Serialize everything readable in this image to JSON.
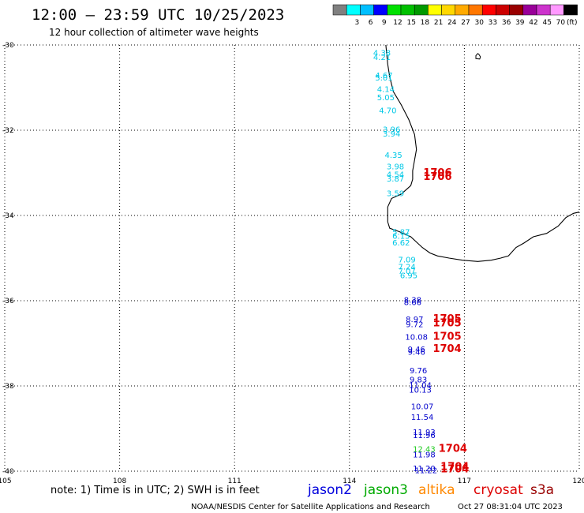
{
  "header": {
    "title": "12:00 – 23:59 UTC 10/25/2023",
    "subtitle": "12 hour collection of altimeter wave heights"
  },
  "legend": {
    "unit": "(ft)",
    "entries": [
      {
        "color": "#808080",
        "label": ""
      },
      {
        "color": "#00ffff",
        "label": "3"
      },
      {
        "color": "#00bfff",
        "label": "6"
      },
      {
        "color": "#0000ff",
        "label": "9"
      },
      {
        "color": "#00e000",
        "label": "12"
      },
      {
        "color": "#00c000",
        "label": "15"
      },
      {
        "color": "#009900",
        "label": "18"
      },
      {
        "color": "#ffff00",
        "label": "21"
      },
      {
        "color": "#ffd700",
        "label": "24"
      },
      {
        "color": "#ffaa00",
        "label": "27"
      },
      {
        "color": "#ff7700",
        "label": "30"
      },
      {
        "color": "#ff0000",
        "label": "33"
      },
      {
        "color": "#cc0000",
        "label": "36"
      },
      {
        "color": "#990000",
        "label": "39"
      },
      {
        "color": "#990099",
        "label": "42"
      },
      {
        "color": "#cc33cc",
        "label": "45"
      },
      {
        "color": "#ff99ff",
        "label": "70"
      },
      {
        "color": "#000000",
        "label": ""
      }
    ]
  },
  "map": {
    "lon_range": [
      105,
      120
    ],
    "lat_range": [
      -40,
      -30
    ],
    "lon_ticks": [
      {
        "value": 105,
        "label": "105"
      },
      {
        "value": 108,
        "label": "108"
      },
      {
        "value": 111,
        "label": "111"
      },
      {
        "value": 114,
        "label": "114"
      },
      {
        "value": 117,
        "label": "117"
      },
      {
        "value": 120,
        "label": "120"
      }
    ],
    "lat_ticks": [
      {
        "value": -30,
        "label": "-30"
      },
      {
        "value": -32,
        "label": "-32"
      },
      {
        "value": -34,
        "label": "-34"
      },
      {
        "value": -36,
        "label": "-36"
      },
      {
        "value": -38,
        "label": "-38"
      },
      {
        "value": -40,
        "label": "-40"
      }
    ],
    "colors": {
      "cyan": "#00c8e6",
      "blue": "#0000cc",
      "green": "#22cc22",
      "red": "#dd0000",
      "coast": "#000000"
    }
  },
  "observations": [
    {
      "lon": 114.85,
      "lat": -30.25,
      "value": "4.38",
      "color": "cyan"
    },
    {
      "lon": 114.85,
      "lat": -30.35,
      "value": "4.21",
      "color": "cyan"
    },
    {
      "lon": 114.9,
      "lat": -30.78,
      "value": "4.67",
      "color": "cyan"
    },
    {
      "lon": 114.9,
      "lat": -30.83,
      "value": "5.01",
      "color": "cyan"
    },
    {
      "lon": 114.95,
      "lat": -31.1,
      "value": "4.14",
      "color": "cyan"
    },
    {
      "lon": 114.95,
      "lat": -31.3,
      "value": "5.05",
      "color": "cyan"
    },
    {
      "lon": 115.0,
      "lat": -31.6,
      "value": "4.70",
      "color": "cyan"
    },
    {
      "lon": 115.1,
      "lat": -32.05,
      "value": "3.96",
      "color": "cyan"
    },
    {
      "lon": 115.1,
      "lat": -32.15,
      "value": "3.94",
      "color": "cyan"
    },
    {
      "lon": 115.15,
      "lat": -32.65,
      "value": "4.35",
      "color": "cyan"
    },
    {
      "lon": 115.2,
      "lat": -32.92,
      "value": "3.98",
      "color": "cyan"
    },
    {
      "lon": 115.2,
      "lat": -33.1,
      "value": "4.54",
      "color": "cyan"
    },
    {
      "lon": 115.2,
      "lat": -33.2,
      "value": "3.87",
      "color": "cyan"
    },
    {
      "lon": 115.2,
      "lat": -33.55,
      "value": "3.59",
      "color": "cyan"
    },
    {
      "lon": 115.35,
      "lat": -34.45,
      "value": "5.87",
      "color": "cyan"
    },
    {
      "lon": 115.35,
      "lat": -34.55,
      "value": "6.15",
      "color": "cyan"
    },
    {
      "lon": 115.35,
      "lat": -34.7,
      "value": "6.62",
      "color": "cyan"
    },
    {
      "lon": 115.5,
      "lat": -35.1,
      "value": "7.09",
      "color": "cyan"
    },
    {
      "lon": 115.5,
      "lat": -35.27,
      "value": "7.24",
      "color": "cyan"
    },
    {
      "lon": 115.5,
      "lat": -35.37,
      "value": "7.07",
      "color": "cyan"
    },
    {
      "lon": 115.55,
      "lat": -35.47,
      "value": "6.95",
      "color": "cyan"
    },
    {
      "lon": 115.65,
      "lat": -36.05,
      "value": "8.38",
      "color": "blue"
    },
    {
      "lon": 115.65,
      "lat": -36.1,
      "value": "8.66",
      "color": "blue"
    },
    {
      "lon": 115.7,
      "lat": -36.5,
      "value": "8.97",
      "color": "blue"
    },
    {
      "lon": 115.7,
      "lat": -36.62,
      "value": "9.72",
      "color": "blue"
    },
    {
      "lon": 115.75,
      "lat": -36.92,
      "value": "10.08",
      "color": "blue"
    },
    {
      "lon": 115.75,
      "lat": -37.2,
      "value": "9.46",
      "color": "blue"
    },
    {
      "lon": 115.75,
      "lat": -37.27,
      "value": "9.46",
      "color": "blue"
    },
    {
      "lon": 115.8,
      "lat": -37.7,
      "value": "9.76",
      "color": "blue"
    },
    {
      "lon": 115.8,
      "lat": -37.92,
      "value": "9.83",
      "color": "blue"
    },
    {
      "lon": 115.85,
      "lat": -38.05,
      "value": "11.04",
      "color": "blue"
    },
    {
      "lon": 115.85,
      "lat": -38.16,
      "value": "10.13",
      "color": "blue"
    },
    {
      "lon": 115.9,
      "lat": -38.55,
      "value": "10.07",
      "color": "blue"
    },
    {
      "lon": 115.9,
      "lat": -38.8,
      "value": "11.54",
      "color": "blue"
    },
    {
      "lon": 115.95,
      "lat": -39.15,
      "value": "11.93",
      "color": "blue"
    },
    {
      "lon": 115.95,
      "lat": -39.22,
      "value": "11.96",
      "color": "blue"
    },
    {
      "lon": 115.95,
      "lat": -39.55,
      "value": "12.43",
      "color": "green"
    },
    {
      "lon": 115.95,
      "lat": -39.68,
      "value": "11.98",
      "color": "blue"
    },
    {
      "lon": 115.95,
      "lat": -40.0,
      "value": "11.20",
      "color": "blue"
    },
    {
      "lon": 116.0,
      "lat": -40.05,
      "value": "11.22",
      "color": "blue"
    }
  ],
  "times": [
    {
      "lon": 116.3,
      "lat": -33.07,
      "value": "1706"
    },
    {
      "lon": 116.3,
      "lat": -33.17,
      "value": "1706"
    },
    {
      "lon": 116.55,
      "lat": -36.5,
      "value": "1705"
    },
    {
      "lon": 116.55,
      "lat": -36.6,
      "value": "1705"
    },
    {
      "lon": 116.55,
      "lat": -36.92,
      "value": "1705"
    },
    {
      "lon": 116.55,
      "lat": -37.2,
      "value": "1704"
    },
    {
      "lon": 116.7,
      "lat": -39.55,
      "value": "1704"
    },
    {
      "lon": 116.75,
      "lat": -39.97,
      "value": "1704"
    },
    {
      "lon": 116.75,
      "lat": -40.03,
      "value": "1704"
    }
  ],
  "coastline": [
    [
      114.95,
      -30.0
    ],
    [
      115.0,
      -30.45
    ],
    [
      115.05,
      -30.75
    ],
    [
      115.15,
      -31.1
    ],
    [
      115.35,
      -31.4
    ],
    [
      115.55,
      -31.75
    ],
    [
      115.7,
      -32.1
    ],
    [
      115.75,
      -32.45
    ],
    [
      115.7,
      -32.7
    ],
    [
      115.65,
      -32.95
    ],
    [
      115.65,
      -33.15
    ],
    [
      115.6,
      -33.3
    ],
    [
      115.35,
      -33.5
    ],
    [
      115.1,
      -33.6
    ],
    [
      115.0,
      -33.8
    ],
    [
      115.0,
      -34.15
    ],
    [
      115.05,
      -34.3
    ],
    [
      115.3,
      -34.38
    ],
    [
      115.6,
      -34.5
    ],
    [
      115.9,
      -34.75
    ],
    [
      116.1,
      -34.88
    ],
    [
      116.3,
      -34.95
    ],
    [
      116.6,
      -35.0
    ],
    [
      116.95,
      -35.05
    ],
    [
      117.35,
      -35.08
    ],
    [
      117.7,
      -35.05
    ],
    [
      117.95,
      -35.0
    ],
    [
      118.15,
      -34.95
    ],
    [
      118.35,
      -34.75
    ],
    [
      118.55,
      -34.65
    ],
    [
      118.8,
      -34.5
    ],
    [
      119.15,
      -34.42
    ],
    [
      119.45,
      -34.25
    ],
    [
      119.65,
      -34.05
    ],
    [
      119.85,
      -33.95
    ],
    [
      120.0,
      -33.92
    ]
  ],
  "islands": [
    [
      [
        117.35,
        -30.2
      ],
      [
        117.3,
        -30.25
      ],
      [
        117.3,
        -30.32
      ],
      [
        117.4,
        -30.33
      ],
      [
        117.42,
        -30.28
      ],
      [
        117.38,
        -30.22
      ]
    ]
  ],
  "footer": {
    "note": "note:  1) Time is in UTC;  2) SWH is in feet",
    "satellites": [
      {
        "name": "jason2",
        "color": "#0000dd"
      },
      {
        "name": "jason3",
        "color": "#00aa00"
      },
      {
        "name": "altika",
        "color": "#ff8800"
      },
      {
        "name": "cryosat",
        "color": "#dd0000"
      },
      {
        "name": "s3a",
        "color": "#990000"
      }
    ],
    "credit": "NOAA/NESDIS Center for Satellite Applications and Research",
    "generated": "Oct 27 08:31:04 UTC 2023"
  }
}
